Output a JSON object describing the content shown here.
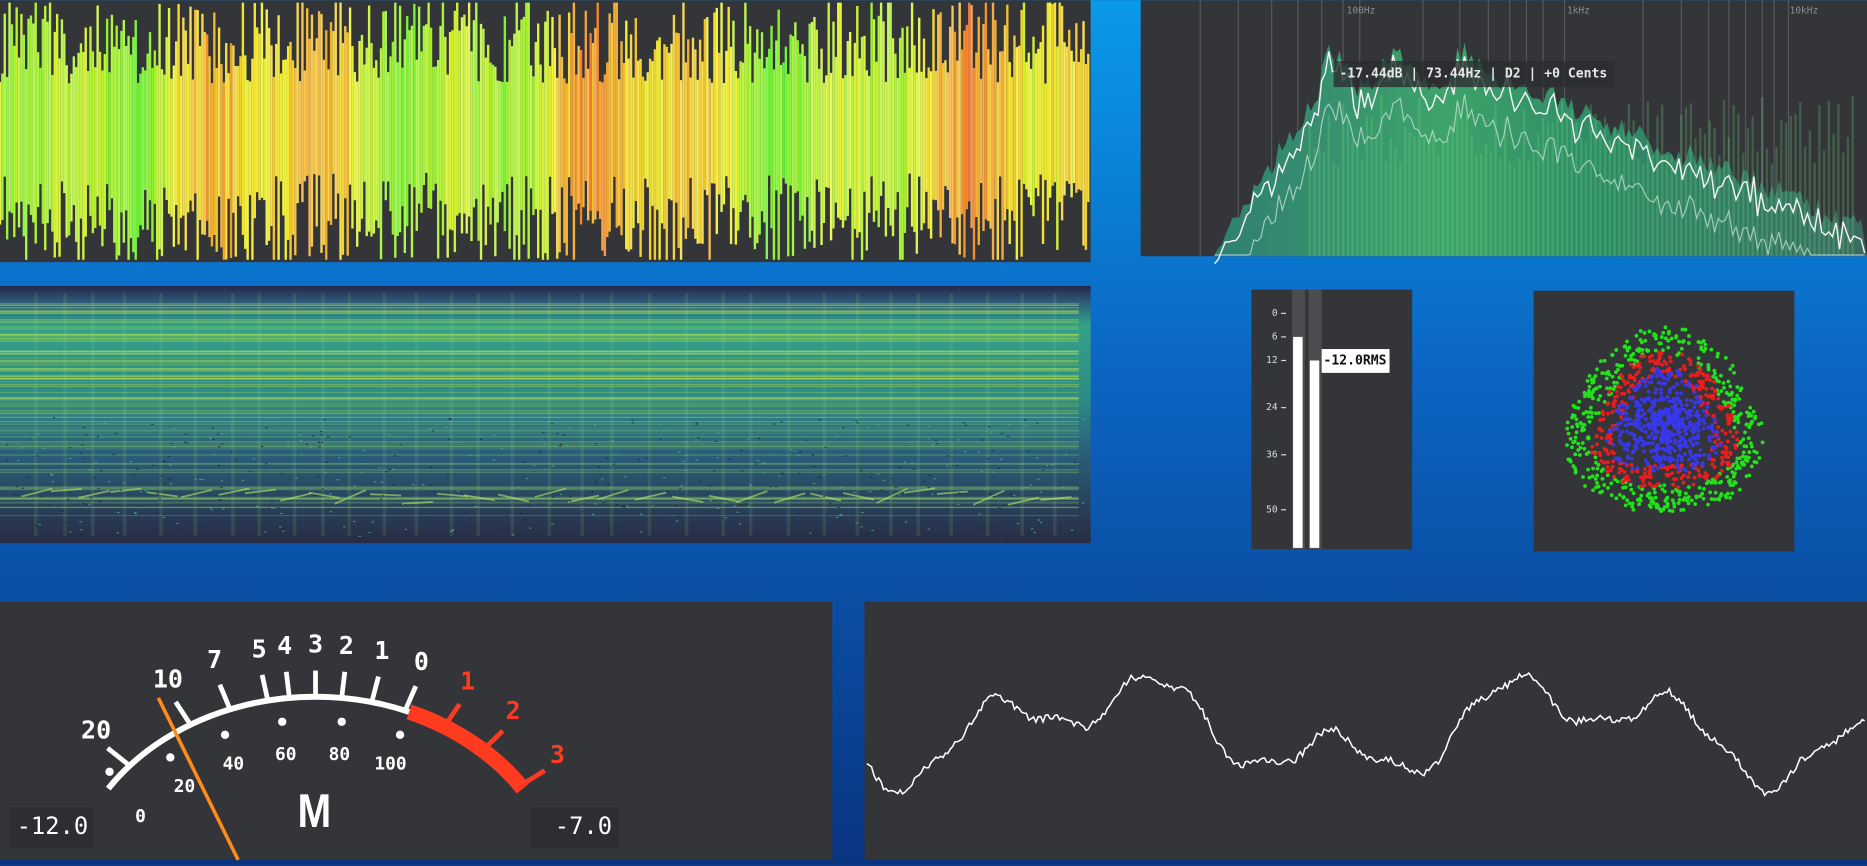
{
  "spectrum": {
    "freq_labels": [
      "100Hz",
      "1kHz",
      "10kHz"
    ],
    "readout": "-17.44dB | 73.44Hz | D2 | +0 Cents"
  },
  "level_meter": {
    "ticks": [
      0,
      6,
      12,
      24,
      36,
      50
    ],
    "levels": [
      6,
      12
    ],
    "rms_label": "-12.0RMS"
  },
  "vu_meter": {
    "db_scale": [
      "20",
      "10",
      "7",
      "5",
      "4",
      "3",
      "2",
      "1",
      "0",
      "1",
      "2",
      "3"
    ],
    "percent_scale": [
      "0",
      "20",
      "40",
      "60",
      "80",
      "100"
    ],
    "label": "M",
    "left_readout": "-12.0",
    "right_readout": "-7.0"
  }
}
